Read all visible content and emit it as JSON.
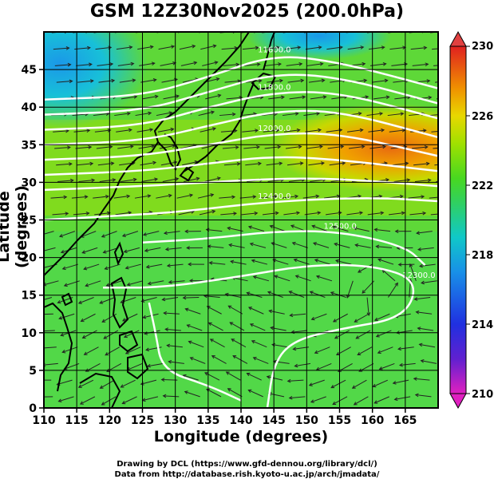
{
  "title": "GSM 12Z30Nov2025 (200.0hPa)",
  "xlabel": "Longitude (degrees)",
  "ylabel": "Latitude  (degrees)",
  "credit_line1": "Drawing by DCL (https://www.gfd-dennou.org/library/dcl/)",
  "credit_line2": "Data from http://database.rish.kyoto-u.ac.jp/arch/jmadata/",
  "chart_data": {
    "type": "heatmap",
    "field": "temperature-shading with height contours and wind streamlines",
    "xlim": [
      110,
      170
    ],
    "ylim": [
      0,
      50
    ],
    "x_ticks": [
      110,
      115,
      120,
      125,
      130,
      135,
      140,
      145,
      150,
      155,
      160,
      165
    ],
    "y_ticks": [
      0,
      5,
      10,
      15,
      20,
      25,
      30,
      35,
      40,
      45
    ],
    "colorbar": {
      "min": 210,
      "max": 230,
      "ticks": [
        210,
        214,
        218,
        222,
        226,
        230
      ],
      "colors": [
        "#e020c0",
        "#6020d0",
        "#2040e0",
        "#1890e8",
        "#10c8c8",
        "#20d070",
        "#40d820",
        "#98e000",
        "#e0d800",
        "#f0a000",
        "#f06020",
        "#e02020"
      ]
    },
    "contour_labels": [
      "11600.0",
      "12000.0",
      "12400.0",
      "12500.0",
      "12300.0"
    ],
    "contours": [
      {
        "label": "11600.0",
        "points": [
          [
            110,
            41.0
          ],
          [
            125,
            41.5
          ],
          [
            135,
            44.0
          ],
          [
            145,
            47.0
          ],
          [
            155,
            46.0
          ],
          [
            170,
            42.5
          ]
        ]
      },
      {
        "label": "",
        "points": [
          [
            110,
            39.0
          ],
          [
            125,
            39.5
          ],
          [
            135,
            42.0
          ],
          [
            145,
            44.5
          ],
          [
            155,
            44.0
          ],
          [
            170,
            40.5
          ]
        ]
      },
      {
        "label": "11800.0",
        "points": [
          [
            110,
            37.0
          ],
          [
            125,
            37.5
          ],
          [
            135,
            40.0
          ],
          [
            145,
            42.0
          ],
          [
            155,
            42.0
          ],
          [
            170,
            38.5
          ]
        ]
      },
      {
        "label": "",
        "points": [
          [
            110,
            35.0
          ],
          [
            125,
            35.5
          ],
          [
            135,
            37.5
          ],
          [
            145,
            39.5
          ],
          [
            155,
            39.5
          ],
          [
            170,
            36.0
          ]
        ]
      },
      {
        "label": "12000.0",
        "points": [
          [
            110,
            33.0
          ],
          [
            125,
            33.5
          ],
          [
            135,
            35.0
          ],
          [
            145,
            36.5
          ],
          [
            155,
            36.5
          ],
          [
            170,
            33.5
          ]
        ]
      },
      {
        "label": "",
        "points": [
          [
            110,
            31.0
          ],
          [
            125,
            31.5
          ],
          [
            135,
            32.5
          ],
          [
            145,
            33.5
          ],
          [
            155,
            33.0
          ],
          [
            170,
            31.5
          ]
        ]
      },
      {
        "label": "",
        "points": [
          [
            110,
            29.0
          ],
          [
            125,
            29.5
          ],
          [
            135,
            30.0
          ],
          [
            145,
            30.5
          ],
          [
            155,
            30.5
          ],
          [
            170,
            29.5
          ]
        ]
      },
      {
        "label": "12400.0",
        "points": [
          [
            110,
            25.0
          ],
          [
            120,
            25.5
          ],
          [
            130,
            26.0
          ],
          [
            145,
            27.5
          ],
          [
            160,
            28.0
          ],
          [
            170,
            27.5
          ]
        ]
      },
      {
        "label": "12500.0",
        "points": [
          [
            125,
            22.0
          ],
          [
            135,
            22.5
          ],
          [
            145,
            23.5
          ],
          [
            155,
            23.5
          ],
          [
            165,
            21.5
          ],
          [
            168,
            19.0
          ]
        ]
      },
      {
        "label": "12300.0",
        "points": [
          [
            119,
            16.0
          ],
          [
            128,
            16.0
          ],
          [
            140,
            17.5
          ],
          [
            150,
            19.0
          ],
          [
            160,
            19.0
          ],
          [
            167,
            17.0
          ],
          [
            165,
            12.0
          ],
          [
            155,
            10.5
          ],
          [
            148,
            9.0
          ],
          [
            145,
            6.0
          ],
          [
            144,
            0
          ]
        ]
      },
      {
        "label": "",
        "points": [
          [
            126,
            14.0
          ],
          [
            127,
            10.0
          ],
          [
            128,
            5.0
          ],
          [
            135,
            3.0
          ],
          [
            140,
            1.0
          ]
        ]
      }
    ],
    "warm_core": {
      "center": [
        162,
        36.0
      ],
      "value": 227
    },
    "cold_pool": {
      "center": [
        112,
        45.0
      ],
      "value": 218
    }
  }
}
